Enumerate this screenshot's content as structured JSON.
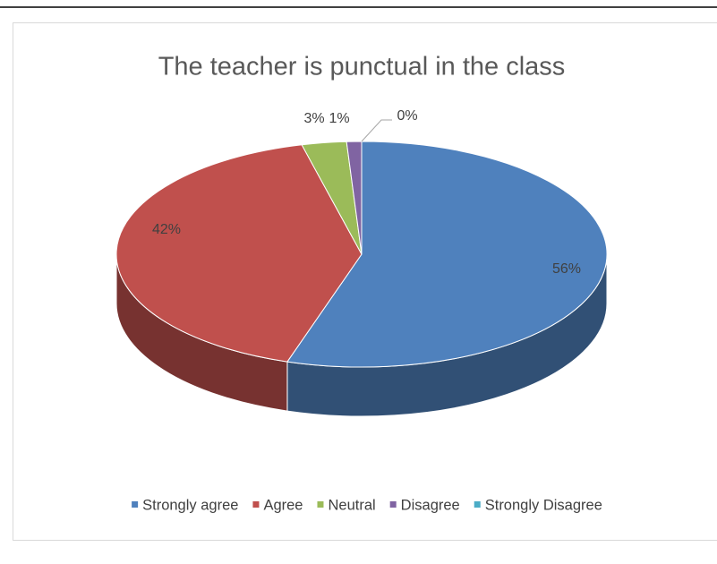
{
  "chart_data": {
    "type": "pie3d",
    "title": "The teacher is punctual in the class",
    "categories": [
      "Strongly agree",
      "Agree",
      "Neutral",
      "Disagree",
      "Strongly Disagree"
    ],
    "values": [
      56,
      42,
      3,
      1,
      0
    ],
    "value_labels": [
      "56%",
      "42%",
      "3%",
      "1%",
      "0%"
    ],
    "colors": [
      "#4f81bd",
      "#c0504d",
      "#9bbb59",
      "#8064a2",
      "#4bacc6"
    ],
    "legend": "bottom"
  }
}
